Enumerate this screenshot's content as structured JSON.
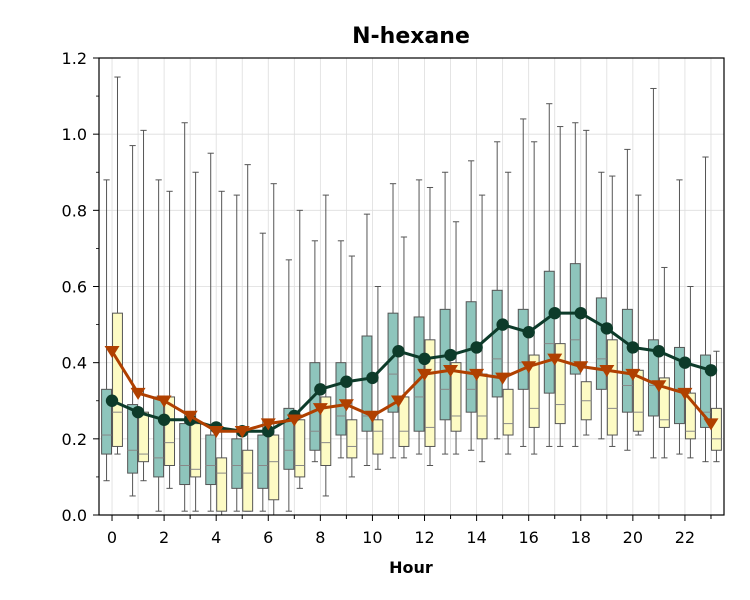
{
  "chart_data": {
    "type": "box",
    "title": "N-hexane",
    "xlabel": "Hour",
    "ylabel": "",
    "xlim": [
      -0.5,
      23.5
    ],
    "ylim": [
      0.0,
      1.2
    ],
    "x_ticks": [
      0,
      2,
      4,
      6,
      8,
      10,
      12,
      14,
      16,
      18,
      20,
      22
    ],
    "y_ticks": [
      0.0,
      0.2,
      0.4,
      0.6,
      0.8,
      1.0,
      1.2
    ],
    "y_tick_labels": [
      "0.0",
      "0.2",
      "0.4",
      "0.6",
      "0.8",
      "1.0",
      "1.2"
    ],
    "x_tick_labels": [
      "0",
      "2",
      "4",
      "6",
      "8",
      "10",
      "12",
      "14",
      "16",
      "18",
      "20",
      "22"
    ],
    "grid": true,
    "colors": {
      "box_a_fill": "#8ec5bc",
      "box_b_fill": "#fdfbc4",
      "box_edge": "#555555",
      "line_a": "#0d3b2a",
      "line_b": "#b04000"
    },
    "hours": [
      0,
      1,
      2,
      3,
      4,
      5,
      6,
      7,
      8,
      9,
      10,
      11,
      12,
      13,
      14,
      15,
      16,
      17,
      18,
      19,
      20,
      21,
      22,
      23
    ],
    "boxes_a": [
      {
        "whislo": 0.09,
        "q1": 0.16,
        "med": 0.21,
        "q3": 0.33,
        "whishi": 0.88
      },
      {
        "whislo": 0.05,
        "q1": 0.11,
        "med": 0.17,
        "q3": 0.29,
        "whishi": 0.97
      },
      {
        "whislo": 0.01,
        "q1": 0.1,
        "med": 0.15,
        "q3": 0.31,
        "whishi": 0.88
      },
      {
        "whislo": 0.01,
        "q1": 0.08,
        "med": 0.13,
        "q3": 0.24,
        "whishi": 1.03
      },
      {
        "whislo": 0.01,
        "q1": 0.08,
        "med": 0.13,
        "q3": 0.21,
        "whishi": 0.95
      },
      {
        "whislo": 0.01,
        "q1": 0.07,
        "med": 0.13,
        "q3": 0.2,
        "whishi": 0.84
      },
      {
        "whislo": 0.01,
        "q1": 0.07,
        "med": 0.13,
        "q3": 0.21,
        "whishi": 0.74
      },
      {
        "whislo": 0.01,
        "q1": 0.12,
        "med": 0.17,
        "q3": 0.28,
        "whishi": 0.67
      },
      {
        "whislo": 0.14,
        "q1": 0.17,
        "med": 0.22,
        "q3": 0.4,
        "whishi": 0.72
      },
      {
        "whislo": 0.15,
        "q1": 0.21,
        "med": 0.26,
        "q3": 0.4,
        "whishi": 0.72
      },
      {
        "whislo": 0.13,
        "q1": 0.22,
        "med": 0.26,
        "q3": 0.47,
        "whishi": 0.79
      },
      {
        "whislo": 0.15,
        "q1": 0.27,
        "med": 0.37,
        "q3": 0.53,
        "whishi": 0.87
      },
      {
        "whislo": 0.16,
        "q1": 0.22,
        "med": 0.31,
        "q3": 0.52,
        "whishi": 0.88
      },
      {
        "whislo": 0.16,
        "q1": 0.25,
        "med": 0.33,
        "q3": 0.54,
        "whishi": 0.9
      },
      {
        "whislo": 0.17,
        "q1": 0.27,
        "med": 0.33,
        "q3": 0.56,
        "whishi": 0.93
      },
      {
        "whislo": 0.2,
        "q1": 0.31,
        "med": 0.41,
        "q3": 0.59,
        "whishi": 0.98
      },
      {
        "whislo": 0.18,
        "q1": 0.33,
        "med": 0.4,
        "q3": 0.54,
        "whishi": 1.04
      },
      {
        "whislo": 0.18,
        "q1": 0.32,
        "med": 0.45,
        "q3": 0.64,
        "whishi": 1.08
      },
      {
        "whislo": 0.18,
        "q1": 0.37,
        "med": 0.46,
        "q3": 0.66,
        "whishi": 1.03
      },
      {
        "whislo": 0.2,
        "q1": 0.33,
        "med": 0.41,
        "q3": 0.57,
        "whishi": 0.9
      },
      {
        "whislo": 0.17,
        "q1": 0.27,
        "med": 0.34,
        "q3": 0.54,
        "whishi": 0.96
      },
      {
        "whislo": 0.15,
        "q1": 0.26,
        "med": 0.34,
        "q3": 0.46,
        "whishi": 1.12
      },
      {
        "whislo": 0.16,
        "q1": 0.24,
        "med": 0.33,
        "q3": 0.44,
        "whishi": 0.88
      },
      {
        "whislo": 0.14,
        "q1": 0.23,
        "med": 0.27,
        "q3": 0.42,
        "whishi": 0.94
      }
    ],
    "boxes_b": [
      {
        "whislo": 0.16,
        "q1": 0.18,
        "med": 0.27,
        "q3": 0.53,
        "whishi": 1.15
      },
      {
        "whislo": 0.09,
        "q1": 0.14,
        "med": 0.16,
        "q3": 0.27,
        "whishi": 1.01
      },
      {
        "whislo": 0.07,
        "q1": 0.13,
        "med": 0.19,
        "q3": 0.31,
        "whishi": 0.85
      },
      {
        "whislo": 0.01,
        "q1": 0.1,
        "med": 0.12,
        "q3": 0.24,
        "whishi": 0.9
      },
      {
        "whislo": 0.0,
        "q1": 0.01,
        "med": 0.11,
        "q3": 0.15,
        "whishi": 0.85
      },
      {
        "whislo": 0.01,
        "q1": 0.01,
        "med": 0.11,
        "q3": 0.17,
        "whishi": 0.92
      },
      {
        "whislo": 0.0,
        "q1": 0.04,
        "med": 0.14,
        "q3": 0.21,
        "whishi": 0.87
      },
      {
        "whislo": 0.07,
        "q1": 0.1,
        "med": 0.13,
        "q3": 0.25,
        "whishi": 0.8
      },
      {
        "whislo": 0.05,
        "q1": 0.13,
        "med": 0.19,
        "q3": 0.31,
        "whishi": 0.84
      },
      {
        "whislo": 0.1,
        "q1": 0.15,
        "med": 0.18,
        "q3": 0.25,
        "whishi": 0.68
      },
      {
        "whislo": 0.12,
        "q1": 0.16,
        "med": 0.22,
        "q3": 0.25,
        "whishi": 0.6
      },
      {
        "whislo": 0.15,
        "q1": 0.18,
        "med": 0.22,
        "q3": 0.31,
        "whishi": 0.73
      },
      {
        "whislo": 0.13,
        "q1": 0.18,
        "med": 0.23,
        "q3": 0.46,
        "whishi": 0.86
      },
      {
        "whislo": 0.16,
        "q1": 0.22,
        "med": 0.26,
        "q3": 0.4,
        "whishi": 0.77
      },
      {
        "whislo": 0.14,
        "q1": 0.2,
        "med": 0.26,
        "q3": 0.37,
        "whishi": 0.84
      },
      {
        "whislo": 0.16,
        "q1": 0.21,
        "med": 0.24,
        "q3": 0.33,
        "whishi": 0.9
      },
      {
        "whislo": 0.16,
        "q1": 0.23,
        "med": 0.28,
        "q3": 0.42,
        "whishi": 0.98
      },
      {
        "whislo": 0.18,
        "q1": 0.24,
        "med": 0.29,
        "q3": 0.45,
        "whishi": 1.02
      },
      {
        "whislo": 0.21,
        "q1": 0.25,
        "med": 0.3,
        "q3": 0.35,
        "whishi": 1.01
      },
      {
        "whislo": 0.18,
        "q1": 0.21,
        "med": 0.28,
        "q3": 0.46,
        "whishi": 0.89
      },
      {
        "whislo": 0.21,
        "q1": 0.22,
        "med": 0.27,
        "q3": 0.38,
        "whishi": 0.84
      },
      {
        "whislo": 0.15,
        "q1": 0.23,
        "med": 0.25,
        "q3": 0.36,
        "whishi": 0.65
      },
      {
        "whislo": 0.15,
        "q1": 0.2,
        "med": 0.22,
        "q3": 0.32,
        "whishi": 0.6
      },
      {
        "whislo": 0.14,
        "q1": 0.17,
        "med": 0.2,
        "q3": 0.28,
        "whishi": 0.43
      }
    ],
    "series": [
      {
        "marker": "circle",
        "values": [
          0.3,
          0.27,
          0.25,
          0.25,
          0.23,
          0.22,
          0.22,
          0.26,
          0.33,
          0.35,
          0.36,
          0.43,
          0.41,
          0.42,
          0.44,
          0.5,
          0.48,
          0.53,
          0.53,
          0.49,
          0.44,
          0.43,
          0.4,
          0.38
        ]
      },
      {
        "marker": "triangle-down",
        "values": [
          0.43,
          0.32,
          0.3,
          0.26,
          0.22,
          0.22,
          0.24,
          0.25,
          0.28,
          0.29,
          0.26,
          0.3,
          0.37,
          0.38,
          0.37,
          0.36,
          0.39,
          0.41,
          0.39,
          0.38,
          0.37,
          0.34,
          0.32,
          0.24
        ]
      }
    ]
  }
}
